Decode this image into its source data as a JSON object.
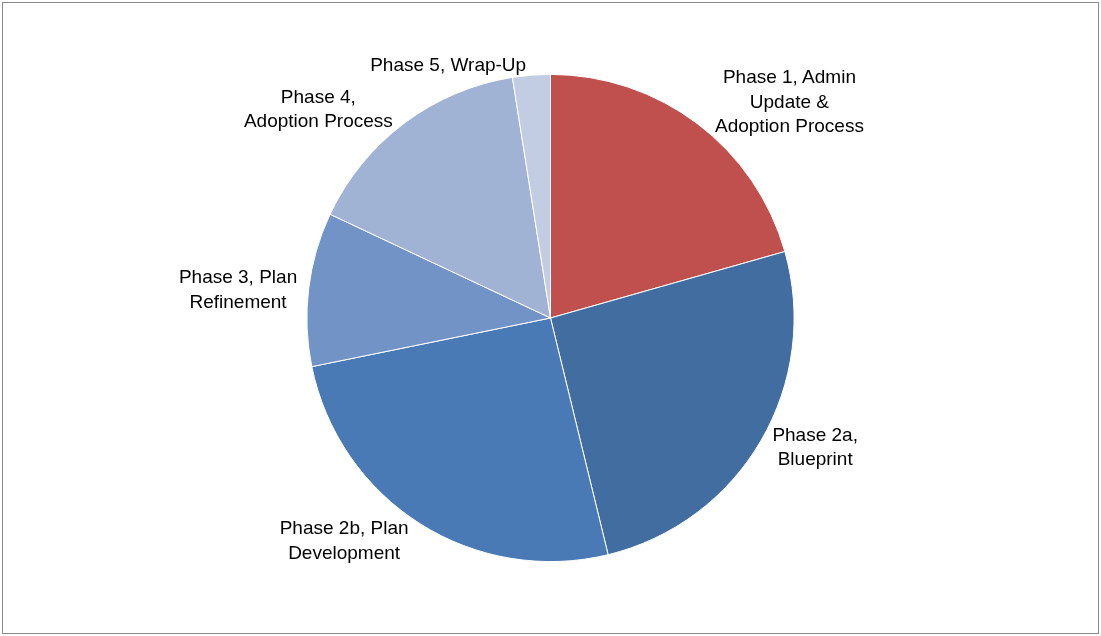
{
  "chart_data": {
    "type": "pie",
    "categories": [
      "Phase 1, Admin Update & Adoption Process",
      "Phase 2a, Blueprint",
      "Phase 2b, Plan Development",
      "Phase 3, Plan Refinement",
      "Phase 4, Adoption Process",
      "Phase 5, Wrap-Up"
    ],
    "values": [
      20.6,
      25.6,
      25.6,
      10.2,
      15.5,
      2.5
    ],
    "colors": [
      "#c0504d",
      "#426da0",
      "#4a7ab5",
      "#7293c5",
      "#a1b3d4",
      "#c2cce2"
    ],
    "legend": false
  }
}
